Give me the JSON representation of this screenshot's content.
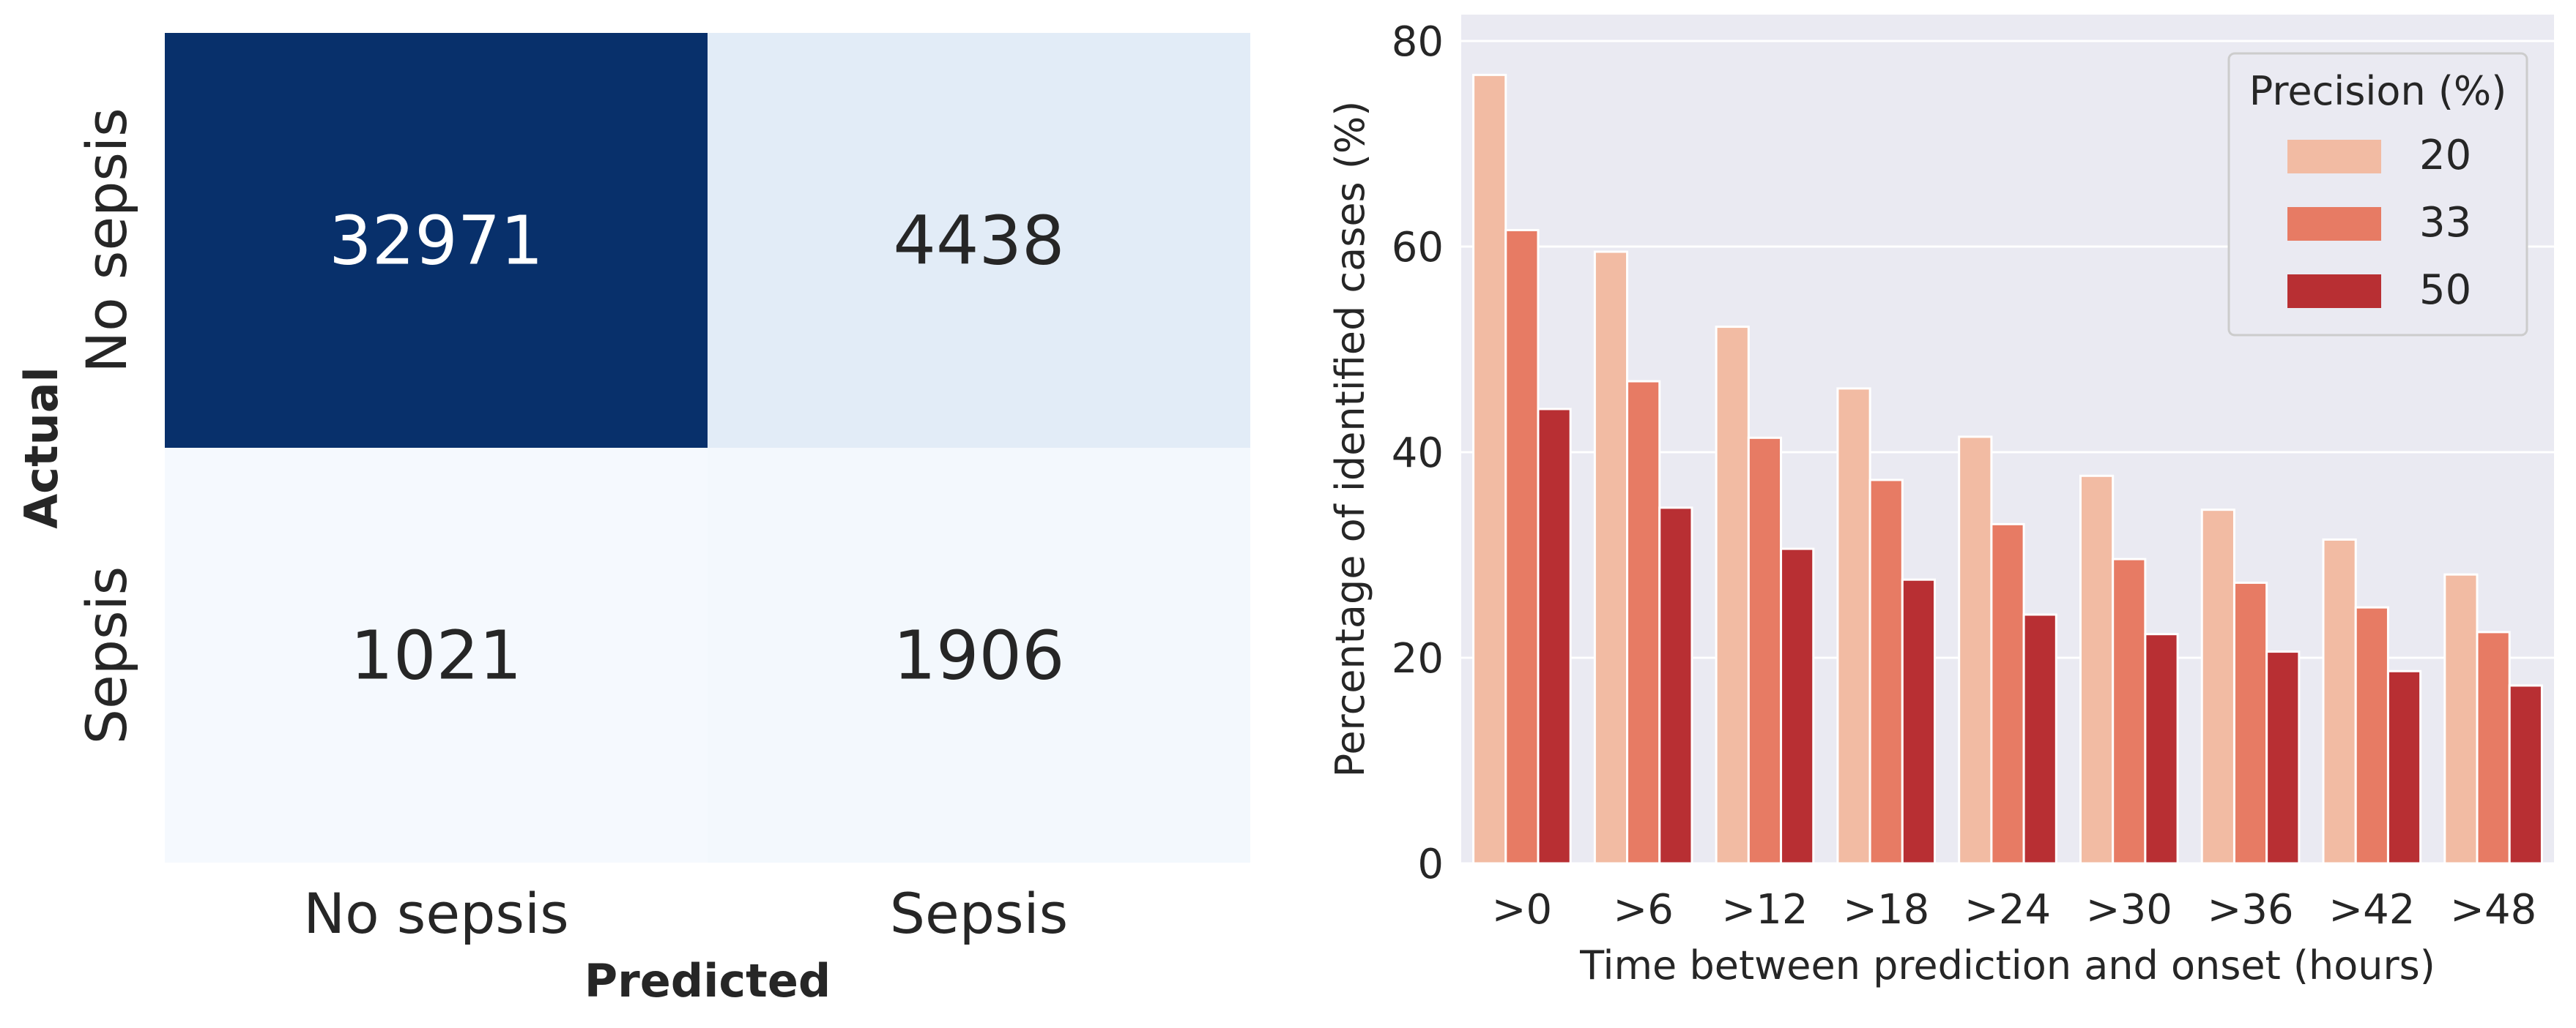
{
  "chart_data": [
    {
      "type": "heatmap",
      "title": "",
      "xlabel": "Predicted",
      "ylabel": "Actual",
      "x_categories": [
        "No sepsis",
        "Sepsis"
      ],
      "y_categories": [
        "No sepsis",
        "Sepsis"
      ],
      "values": [
        [
          32971,
          4438
        ],
        [
          1021,
          1906
        ]
      ],
      "colormap": "Blues",
      "colors": {
        "dark": "#08306b",
        "light": "#f7fbff"
      }
    },
    {
      "type": "bar",
      "title": "",
      "xlabel": "Time between prediction and onset (hours)",
      "ylabel": "Percentage of identified cases (%)",
      "categories": [
        ">0",
        ">6",
        ">12",
        ">18",
        ">24",
        ">30",
        ">36",
        ">42",
        ">48"
      ],
      "ylim": [
        0,
        80
      ],
      "yticks": [
        0,
        20,
        40,
        60,
        80
      ],
      "grid": true,
      "legend": {
        "title": "Precision (%)",
        "placement": "top-right"
      },
      "series": [
        {
          "name": "20",
          "color": "#f2bba3",
          "values": [
            76.7,
            59.5,
            52.2,
            46.2,
            41.5,
            37.7,
            34.4,
            31.5,
            28.1
          ]
        },
        {
          "name": "33",
          "color": "#e77b64",
          "values": [
            61.6,
            46.9,
            41.4,
            37.3,
            33.0,
            29.6,
            27.3,
            24.9,
            22.5
          ]
        },
        {
          "name": "50",
          "color": "#b82f33",
          "values": [
            44.2,
            34.6,
            30.6,
            27.6,
            24.2,
            22.3,
            20.6,
            18.7,
            17.3
          ]
        }
      ]
    }
  ]
}
